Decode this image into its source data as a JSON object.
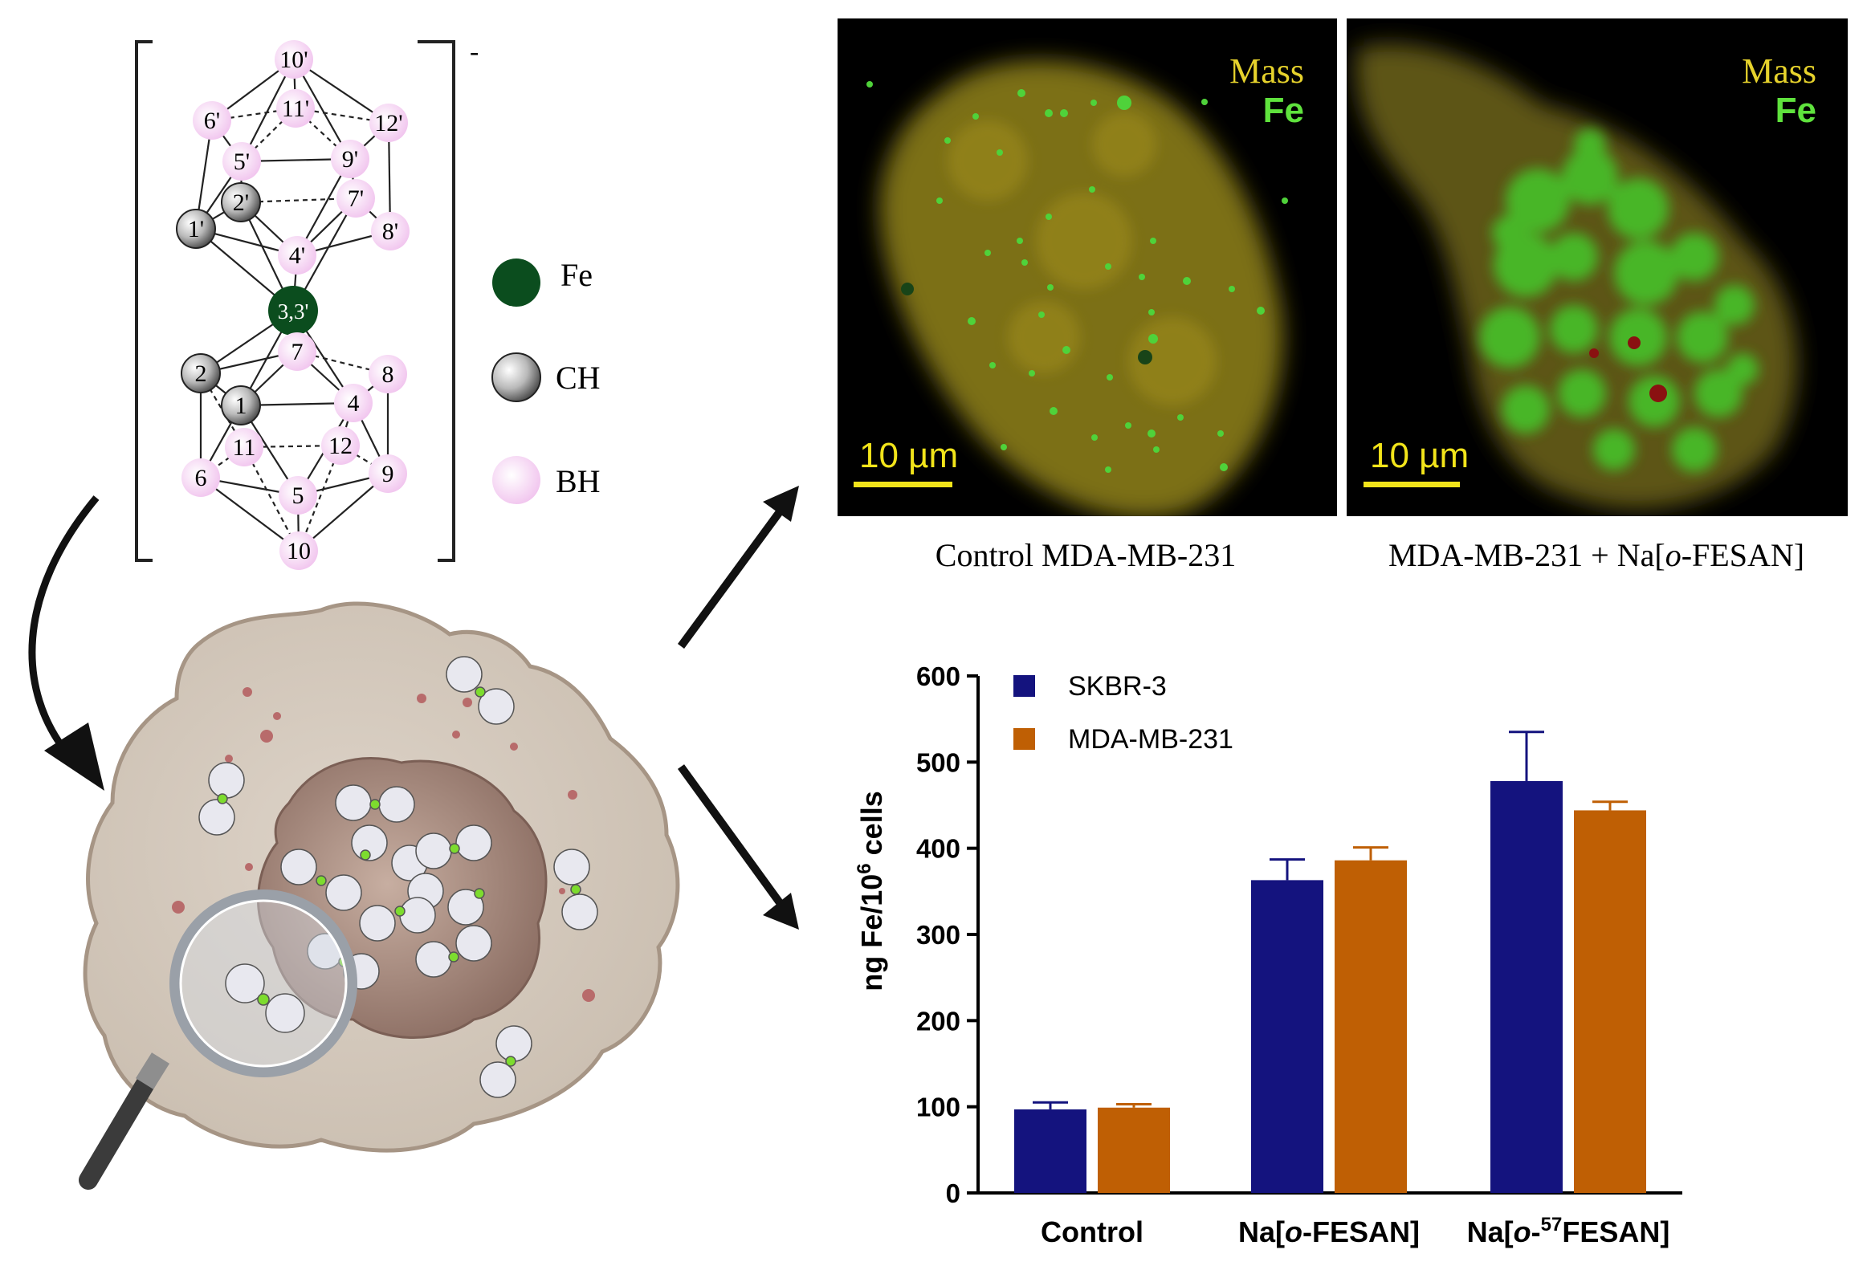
{
  "molecule": {
    "charge": "-",
    "top_cage": {
      "atoms": [
        {
          "label": "10'",
          "kind": "BH"
        },
        {
          "label": "11'",
          "kind": "BH"
        },
        {
          "label": "6'",
          "kind": "BH"
        },
        {
          "label": "12'",
          "kind": "BH"
        },
        {
          "label": "5'",
          "kind": "BH"
        },
        {
          "label": "9'",
          "kind": "BH"
        },
        {
          "label": "2'",
          "kind": "CH"
        },
        {
          "label": "7'",
          "kind": "BH"
        },
        {
          "label": "1'",
          "kind": "CH"
        },
        {
          "label": "8'",
          "kind": "BH"
        },
        {
          "label": "4'",
          "kind": "BH"
        }
      ]
    },
    "metal": {
      "label": "3,3'",
      "kind": "Fe"
    },
    "bottom_cage": {
      "atoms": [
        {
          "label": "7",
          "kind": "BH"
        },
        {
          "label": "2",
          "kind": "CH"
        },
        {
          "label": "8",
          "kind": "BH"
        },
        {
          "label": "1",
          "kind": "CH"
        },
        {
          "label": "4",
          "kind": "BH"
        },
        {
          "label": "11",
          "kind": "BH"
        },
        {
          "label": "12",
          "kind": "BH"
        },
        {
          "label": "6",
          "kind": "BH"
        },
        {
          "label": "9",
          "kind": "BH"
        },
        {
          "label": "5",
          "kind": "BH"
        },
        {
          "label": "10",
          "kind": "BH"
        }
      ]
    },
    "legend": [
      {
        "label": "Fe",
        "color": "#0b4d1e"
      },
      {
        "label": "CH",
        "color": "#c8c8c8"
      },
      {
        "label": "BH",
        "color": "#f6d3f3"
      }
    ]
  },
  "micrographs": [
    {
      "caption": "Control MDA-MB-231",
      "channel_mass": "Mass",
      "channel_fe": "Fe",
      "scale_bar": "10 µm"
    },
    {
      "caption": "MDA-MB-231 + Na[o-FESAN]",
      "caption_prefix": "MDA-MB-231 + Na[",
      "caption_italic": "o",
      "caption_suffix": "-FESAN]",
      "channel_mass": "Mass",
      "channel_fe": "Fe",
      "scale_bar": "10 µm"
    }
  ],
  "colors": {
    "mass_channel": "#e6d22c",
    "fe_channel": "#5fe23d",
    "skbr3": "#14137e",
    "mda": "#bf5f04",
    "scale_bar": "#f2e41a"
  },
  "chart_data": {
    "type": "bar",
    "ylabel": "ng Fe/10^6 cells",
    "ylabel_parts": {
      "pre": "ng Fe/10",
      "sup": "6",
      "post": " cells"
    },
    "ylim": [
      0,
      600
    ],
    "yticks": [
      "0",
      "100",
      "200",
      "300",
      "400",
      "500",
      "600"
    ],
    "categories": [
      "Control",
      "Na[o-FESAN]",
      "Na[o-57FESAN]"
    ],
    "category_labels": [
      {
        "pre": "Control",
        "italic": "",
        "sup": "",
        "post": ""
      },
      {
        "pre": "Na[",
        "italic": "o",
        "sup": "",
        "post": "-FESAN]"
      },
      {
        "pre": "Na[",
        "italic": "o",
        "sup": "57",
        "post": "FESAN]"
      }
    ],
    "series": [
      {
        "name": "SKBR-3",
        "values": [
          97,
          363,
          478
        ],
        "errors": [
          8,
          24,
          57
        ]
      },
      {
        "name": "MDA-MB-231",
        "values": [
          99,
          386,
          444
        ],
        "errors": [
          4,
          15,
          10
        ]
      }
    ],
    "legend_position": "top-left",
    "grid": false
  }
}
